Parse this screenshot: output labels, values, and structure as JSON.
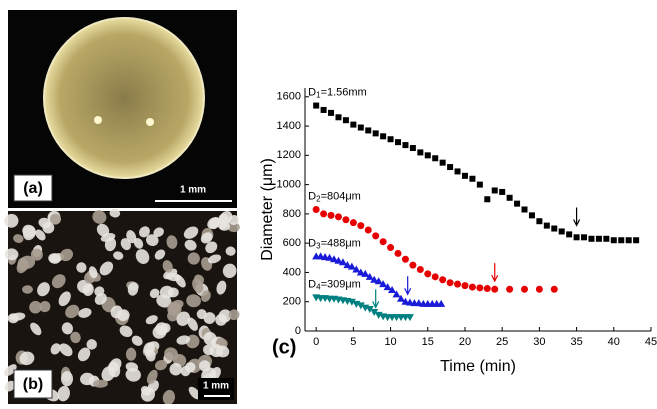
{
  "panels": {
    "a": {
      "label": "(a)",
      "scale": "1 mm"
    },
    "b": {
      "label": "(b)",
      "scale": "1 mm"
    },
    "c": {
      "label": "(c)"
    }
  },
  "chart_data": {
    "type": "scatter",
    "xlabel": "Time (min)",
    "ylabel": "Diameter (μm)",
    "xlim": [
      -1.5,
      45
    ],
    "ylim": [
      0,
      1660
    ],
    "xticks": [
      0,
      5,
      10,
      15,
      20,
      25,
      30,
      35,
      40,
      45
    ],
    "yticks": [
      0,
      200,
      400,
      600,
      800,
      1000,
      1200,
      1400,
      1600
    ],
    "series": [
      {
        "label": {
          "base": "D",
          "sub": "1",
          "rest": "=1.56mm"
        },
        "color": "#000000",
        "marker": "square",
        "x": [
          0,
          1,
          2,
          3,
          4,
          5,
          6,
          7,
          8,
          9,
          10,
          11,
          12,
          13,
          14,
          15,
          16,
          17,
          18,
          19,
          20,
          21,
          22,
          23,
          24,
          25,
          26,
          27,
          28,
          29,
          30,
          31,
          32,
          33,
          34,
          35,
          36,
          37,
          38,
          39,
          40,
          41,
          42,
          43
        ],
        "values": [
          1540,
          1510,
          1490,
          1460,
          1440,
          1410,
          1390,
          1370,
          1350,
          1330,
          1310,
          1290,
          1270,
          1250,
          1220,
          1200,
          1180,
          1150,
          1120,
          1090,
          1060,
          1040,
          1000,
          900,
          960,
          950,
          910,
          870,
          830,
          790,
          750,
          720,
          700,
          680,
          660,
          640,
          640,
          630,
          630,
          630,
          620,
          620,
          620,
          620
        ]
      },
      {
        "label": {
          "base": "D",
          "sub": "2",
          "rest": "=804μm"
        },
        "color": "#e60000",
        "marker": "circle",
        "x": [
          0,
          1,
          2,
          3,
          4,
          5,
          6,
          7,
          8,
          9,
          10,
          11,
          12,
          13,
          14,
          15,
          16,
          17,
          18,
          19,
          20,
          21,
          22,
          23,
          24,
          26,
          28,
          30,
          32
        ],
        "values": [
          830,
          800,
          790,
          780,
          760,
          740,
          720,
          690,
          650,
          610,
          570,
          530,
          490,
          450,
          420,
          390,
          370,
          350,
          330,
          320,
          310,
          300,
          295,
          290,
          285,
          285,
          285,
          285,
          285
        ]
      },
      {
        "label": {
          "base": "D",
          "sub": "3",
          "rest": "=488μm"
        },
        "color": "#1a1ad9",
        "marker": "triangle-up",
        "x": [
          0,
          0.6,
          1.2,
          1.8,
          2.4,
          3,
          3.6,
          4.2,
          4.8,
          5.4,
          6,
          6.6,
          7.2,
          7.8,
          8.4,
          9,
          9.6,
          10.2,
          10.8,
          11.4,
          12,
          12.6,
          13.2,
          13.8,
          14.4,
          15,
          15.6,
          16.2,
          16.8
        ],
        "values": [
          510,
          510,
          505,
          500,
          490,
          480,
          470,
          450,
          440,
          420,
          400,
          390,
          370,
          350,
          340,
          320,
          300,
          280,
          250,
          220,
          200,
          195,
          190,
          190,
          185,
          185,
          185,
          185,
          185
        ]
      },
      {
        "label": {
          "base": "D",
          "sub": "4",
          "rest": "=309μm"
        },
        "color": "#008080",
        "marker": "triangle-down",
        "x": [
          0,
          0.6,
          1.2,
          1.8,
          2.4,
          3,
          3.6,
          4.2,
          4.8,
          5.4,
          6,
          6.6,
          7.2,
          7.8,
          8.4,
          9,
          9.6,
          10.2,
          10.8,
          11.4,
          12,
          12.6
        ],
        "values": [
          230,
          225,
          225,
          220,
          220,
          215,
          210,
          205,
          200,
          185,
          175,
          160,
          150,
          130,
          110,
          100,
          95,
          95,
          95,
          95,
          95,
          95
        ]
      }
    ],
    "arrows": [
      {
        "x": 35,
        "y": 680,
        "color": "#000000"
      },
      {
        "x": 24,
        "y": 300,
        "color": "#e60000"
      },
      {
        "x": 12.3,
        "y": 210,
        "color": "#1a1ad9"
      },
      {
        "x": 8,
        "y": 120,
        "color": "#008080"
      }
    ]
  }
}
